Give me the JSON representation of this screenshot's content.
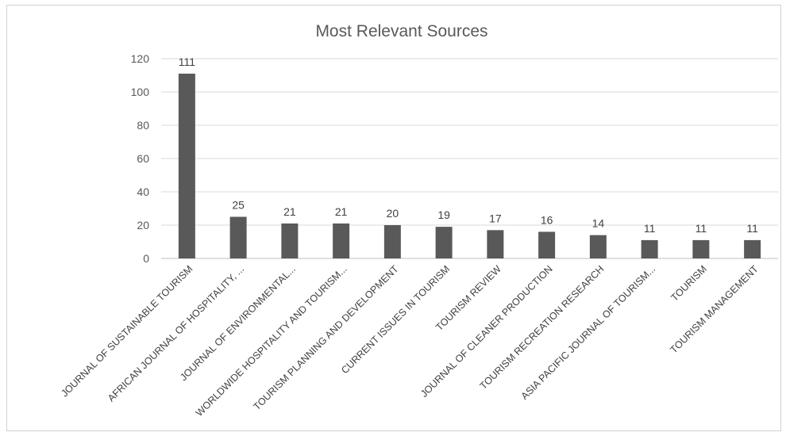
{
  "chart_data": {
    "type": "bar",
    "title": "Most Relevant Sources",
    "xlabel": "",
    "ylabel": "",
    "ylim": [
      0,
      120
    ],
    "yticks": [
      0,
      20,
      40,
      60,
      80,
      100,
      120
    ],
    "grid": true,
    "legend": "none",
    "bar_color": "#595959",
    "categories": [
      "JOURNAL OF SUSTAINABLE TOURISM",
      "AFRICAN JOURNAL OF HOSPITALITY, ...",
      "JOURNAL OF ENVIRONMENTAL...",
      "WORLDWIDE HOSPITALITY AND TOURISM...",
      "TOURISM PLANNING AND DEVELOPMENT",
      "CURRENT ISSUES IN TOURISM",
      "TOURISM REVIEW",
      "JOURNAL OF CLEANER PRODUCTION",
      "TOURISM RECREATION RESEARCH",
      "ASIA PACIFIC JOURNAL OF TOURISM...",
      "TOURISM",
      "TOURISM MANAGEMENT"
    ],
    "values": [
      111,
      25,
      21,
      21,
      20,
      19,
      17,
      16,
      14,
      11,
      11,
      11
    ]
  }
}
